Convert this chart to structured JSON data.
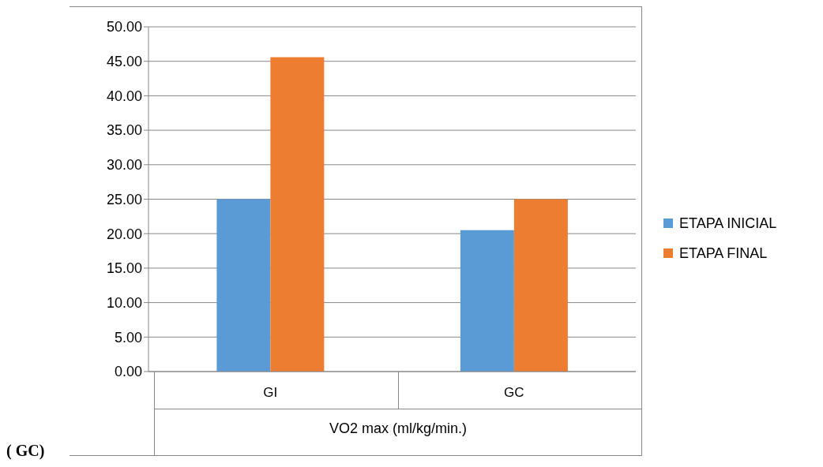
{
  "chart_data": {
    "type": "bar",
    "categories": [
      "GI",
      "GC"
    ],
    "xlabel": "VO2 max  (ml/kg/min.)",
    "series": [
      {
        "name": "ETAPA INICIAL",
        "color": "#5b9bd5",
        "values": [
          25.0,
          20.5
        ]
      },
      {
        "name": "ETAPA FINAL",
        "color": "#ed7d31",
        "values": [
          45.6,
          25.0
        ]
      }
    ],
    "ylim": [
      0,
      50
    ],
    "yticks": [
      {
        "value": 0,
        "label": "0.00"
      },
      {
        "value": 5,
        "label": "5.00"
      },
      {
        "value": 10,
        "label": "10.00"
      },
      {
        "value": 15,
        "label": "15.00"
      },
      {
        "value": 20,
        "label": "20.00"
      },
      {
        "value": 25,
        "label": "25.00"
      },
      {
        "value": 30,
        "label": "30.00"
      },
      {
        "value": 35,
        "label": "35.00"
      },
      {
        "value": 40,
        "label": "40.00"
      },
      {
        "value": 45,
        "label": "45.00"
      },
      {
        "value": 50,
        "label": "50.00"
      }
    ],
    "grid": "y",
    "legend": "right",
    "annotations": [
      "( GC)"
    ]
  }
}
